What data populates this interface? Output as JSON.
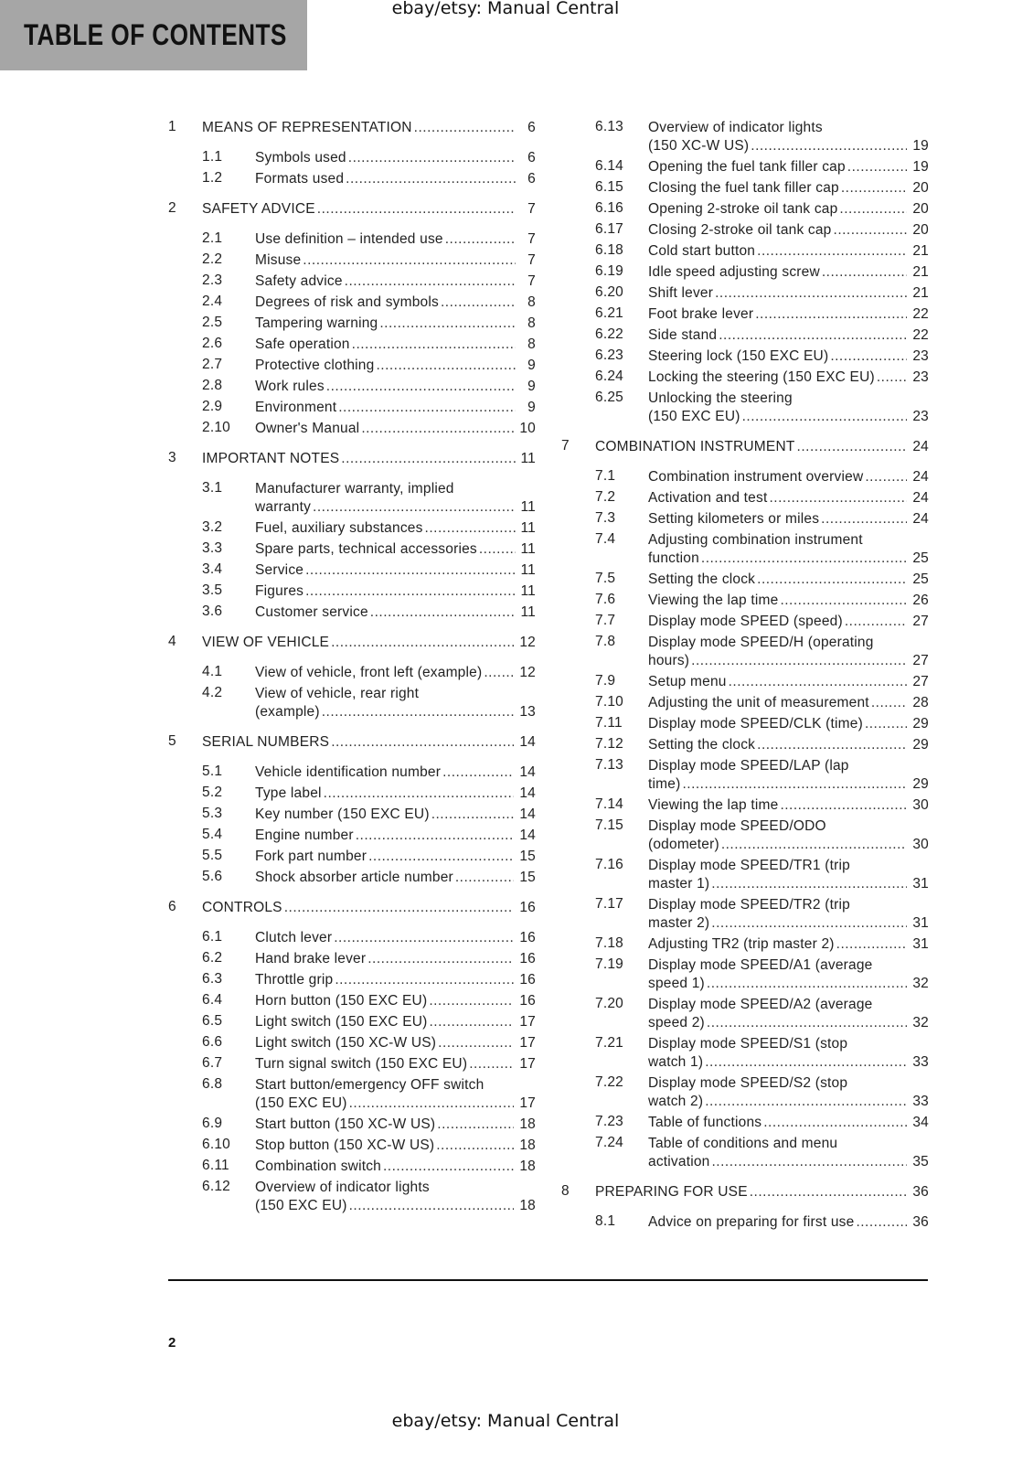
{
  "header": {
    "title": "TABLE OF CONTENTS"
  },
  "watermark_top": "ebay/etsy: Manual Central",
  "watermark_bottom": "ebay/etsy: Manual Central",
  "page_number": "2",
  "columns": [
    [
      {
        "level": 1,
        "num": "1",
        "lines": [
          "MEANS OF REPRESENTATION"
        ],
        "page": "6"
      },
      {
        "level": 2,
        "num": "1.1",
        "lines": [
          "Symbols used"
        ],
        "page": "6"
      },
      {
        "level": 2,
        "num": "1.2",
        "lines": [
          "Formats used"
        ],
        "page": "6"
      },
      {
        "level": 1,
        "num": "2",
        "lines": [
          "SAFETY ADVICE"
        ],
        "page": "7"
      },
      {
        "level": 2,
        "num": "2.1",
        "lines": [
          "Use definition – intended use"
        ],
        "page": "7"
      },
      {
        "level": 2,
        "num": "2.2",
        "lines": [
          "Misuse"
        ],
        "page": "7"
      },
      {
        "level": 2,
        "num": "2.3",
        "lines": [
          "Safety advice"
        ],
        "page": "7"
      },
      {
        "level": 2,
        "num": "2.4",
        "lines": [
          "Degrees of risk and symbols"
        ],
        "page": "8"
      },
      {
        "level": 2,
        "num": "2.5",
        "lines": [
          "Tampering warning"
        ],
        "page": "8"
      },
      {
        "level": 2,
        "num": "2.6",
        "lines": [
          "Safe operation"
        ],
        "page": "8"
      },
      {
        "level": 2,
        "num": "2.7",
        "lines": [
          "Protective clothing"
        ],
        "page": "9"
      },
      {
        "level": 2,
        "num": "2.8",
        "lines": [
          "Work rules"
        ],
        "page": "9"
      },
      {
        "level": 2,
        "num": "2.9",
        "lines": [
          "Environment"
        ],
        "page": "9"
      },
      {
        "level": 2,
        "num": "2.10",
        "lines": [
          "Owner's Manual"
        ],
        "page": "10"
      },
      {
        "level": 1,
        "num": "3",
        "lines": [
          "IMPORTANT NOTES"
        ],
        "page": "11"
      },
      {
        "level": 2,
        "num": "3.1",
        "lines": [
          "Manufacturer warranty, implied",
          "warranty"
        ],
        "page": "11"
      },
      {
        "level": 2,
        "num": "3.2",
        "lines": [
          "Fuel, auxiliary substances"
        ],
        "page": "11"
      },
      {
        "level": 2,
        "num": "3.3",
        "lines": [
          "Spare parts, technical accessories"
        ],
        "page": "11"
      },
      {
        "level": 2,
        "num": "3.4",
        "lines": [
          "Service"
        ],
        "page": "11"
      },
      {
        "level": 2,
        "num": "3.5",
        "lines": [
          "Figures"
        ],
        "page": "11"
      },
      {
        "level": 2,
        "num": "3.6",
        "lines": [
          "Customer service"
        ],
        "page": "11"
      },
      {
        "level": 1,
        "num": "4",
        "lines": [
          "VIEW OF VEHICLE"
        ],
        "page": "12"
      },
      {
        "level": 2,
        "num": "4.1",
        "lines": [
          "View of vehicle, front left (example)"
        ],
        "page": "12"
      },
      {
        "level": 2,
        "num": "4.2",
        "lines": [
          "View of vehicle, rear right",
          "(example)"
        ],
        "page": "13"
      },
      {
        "level": 1,
        "num": "5",
        "lines": [
          "SERIAL NUMBERS"
        ],
        "page": "14"
      },
      {
        "level": 2,
        "num": "5.1",
        "lines": [
          "Vehicle identification number"
        ],
        "page": "14"
      },
      {
        "level": 2,
        "num": "5.2",
        "lines": [
          "Type label"
        ],
        "page": "14"
      },
      {
        "level": 2,
        "num": "5.3",
        "lines": [
          "Key number (150 EXC EU)"
        ],
        "page": "14"
      },
      {
        "level": 2,
        "num": "5.4",
        "lines": [
          "Engine number"
        ],
        "page": "14"
      },
      {
        "level": 2,
        "num": "5.5",
        "lines": [
          "Fork part number"
        ],
        "page": "15"
      },
      {
        "level": 2,
        "num": "5.6",
        "lines": [
          "Shock absorber article number"
        ],
        "page": "15"
      },
      {
        "level": 1,
        "num": "6",
        "lines": [
          "CONTROLS"
        ],
        "page": "16"
      },
      {
        "level": 2,
        "num": "6.1",
        "lines": [
          "Clutch lever"
        ],
        "page": "16"
      },
      {
        "level": 2,
        "num": "6.2",
        "lines": [
          "Hand brake lever"
        ],
        "page": "16"
      },
      {
        "level": 2,
        "num": "6.3",
        "lines": [
          "Throttle grip"
        ],
        "page": "16"
      },
      {
        "level": 2,
        "num": "6.4",
        "lines": [
          "Horn button (150 EXC EU)"
        ],
        "page": "16"
      },
      {
        "level": 2,
        "num": "6.5",
        "lines": [
          "Light switch (150 EXC EU)"
        ],
        "page": "17"
      },
      {
        "level": 2,
        "num": "6.6",
        "lines": [
          "Light switch (150 XC-W US)"
        ],
        "page": "17"
      },
      {
        "level": 2,
        "num": "6.7",
        "lines": [
          "Turn signal switch (150 EXC EU)"
        ],
        "page": "17"
      },
      {
        "level": 2,
        "num": "6.8",
        "lines": [
          "Start button/emergency OFF switch",
          "(150 EXC EU)"
        ],
        "page": "17"
      },
      {
        "level": 2,
        "num": "6.9",
        "lines": [
          "Start button (150 XC-W US)"
        ],
        "page": "18"
      },
      {
        "level": 2,
        "num": "6.10",
        "lines": [
          "Stop button (150 XC-W US)"
        ],
        "page": "18"
      },
      {
        "level": 2,
        "num": "6.11",
        "lines": [
          "Combination switch"
        ],
        "page": "18"
      },
      {
        "level": 2,
        "num": "6.12",
        "lines": [
          "Overview of indicator lights",
          "(150 EXC EU)"
        ],
        "page": "18"
      }
    ],
    [
      {
        "level": 2,
        "num": "6.13",
        "lines": [
          "Overview of indicator lights",
          "(150 XC-W US)"
        ],
        "page": "19"
      },
      {
        "level": 2,
        "num": "6.14",
        "lines": [
          "Opening the fuel tank filler cap"
        ],
        "page": "19"
      },
      {
        "level": 2,
        "num": "6.15",
        "lines": [
          "Closing the fuel tank filler cap"
        ],
        "page": "20"
      },
      {
        "level": 2,
        "num": "6.16",
        "lines": [
          "Opening 2-stroke oil tank cap"
        ],
        "page": "20"
      },
      {
        "level": 2,
        "num": "6.17",
        "lines": [
          "Closing 2-stroke oil tank cap"
        ],
        "page": "20"
      },
      {
        "level": 2,
        "num": "6.18",
        "lines": [
          "Cold start button"
        ],
        "page": "21"
      },
      {
        "level": 2,
        "num": "6.19",
        "lines": [
          "Idle speed adjusting screw"
        ],
        "page": "21"
      },
      {
        "level": 2,
        "num": "6.20",
        "lines": [
          "Shift lever"
        ],
        "page": "21"
      },
      {
        "level": 2,
        "num": "6.21",
        "lines": [
          "Foot brake lever"
        ],
        "page": "22"
      },
      {
        "level": 2,
        "num": "6.22",
        "lines": [
          "Side stand"
        ],
        "page": "22"
      },
      {
        "level": 2,
        "num": "6.23",
        "lines": [
          "Steering lock (150 EXC EU)"
        ],
        "page": "23"
      },
      {
        "level": 2,
        "num": "6.24",
        "lines": [
          "Locking the steering (150 EXC EU)"
        ],
        "page": "23"
      },
      {
        "level": 2,
        "num": "6.25",
        "lines": [
          "Unlocking the steering",
          "(150 EXC EU)"
        ],
        "page": "23"
      },
      {
        "level": 1,
        "num": "7",
        "lines": [
          "COMBINATION INSTRUMENT"
        ],
        "page": "24"
      },
      {
        "level": 2,
        "num": "7.1",
        "lines": [
          "Combination instrument overview"
        ],
        "page": "24"
      },
      {
        "level": 2,
        "num": "7.2",
        "lines": [
          "Activation and test"
        ],
        "page": "24"
      },
      {
        "level": 2,
        "num": "7.3",
        "lines": [
          "Setting kilometers or miles"
        ],
        "page": "24"
      },
      {
        "level": 2,
        "num": "7.4",
        "lines": [
          "Adjusting combination instrument",
          "function"
        ],
        "page": "25"
      },
      {
        "level": 2,
        "num": "7.5",
        "lines": [
          "Setting the clock"
        ],
        "page": "25"
      },
      {
        "level": 2,
        "num": "7.6",
        "lines": [
          "Viewing the lap time"
        ],
        "page": "26"
      },
      {
        "level": 2,
        "num": "7.7",
        "lines": [
          "Display mode SPEED (speed)"
        ],
        "page": "27"
      },
      {
        "level": 2,
        "num": "7.8",
        "lines": [
          "Display mode SPEED/H (operating",
          "hours)"
        ],
        "page": "27"
      },
      {
        "level": 2,
        "num": "7.9",
        "lines": [
          "Setup menu"
        ],
        "page": "27"
      },
      {
        "level": 2,
        "num": "7.10",
        "lines": [
          "Adjusting the unit of measurement"
        ],
        "page": "28"
      },
      {
        "level": 2,
        "num": "7.11",
        "lines": [
          "Display mode SPEED/CLK (time)"
        ],
        "page": "29"
      },
      {
        "level": 2,
        "num": "7.12",
        "lines": [
          "Setting the clock"
        ],
        "page": "29"
      },
      {
        "level": 2,
        "num": "7.13",
        "lines": [
          "Display mode SPEED/LAP (lap",
          "time)"
        ],
        "page": "29"
      },
      {
        "level": 2,
        "num": "7.14",
        "lines": [
          "Viewing the lap time"
        ],
        "page": "30"
      },
      {
        "level": 2,
        "num": "7.15",
        "lines": [
          "Display mode SPEED/ODO",
          "(odometer)"
        ],
        "page": "30"
      },
      {
        "level": 2,
        "num": "7.16",
        "lines": [
          "Display mode SPEED/TR1 (trip",
          "master 1)"
        ],
        "page": "31"
      },
      {
        "level": 2,
        "num": "7.17",
        "lines": [
          "Display mode SPEED/TR2 (trip",
          "master 2)"
        ],
        "page": "31"
      },
      {
        "level": 2,
        "num": "7.18",
        "lines": [
          "Adjusting TR2 (trip master 2)"
        ],
        "page": "31"
      },
      {
        "level": 2,
        "num": "7.19",
        "lines": [
          "Display mode SPEED/A1 (average",
          "speed 1)"
        ],
        "page": "32"
      },
      {
        "level": 2,
        "num": "7.20",
        "lines": [
          "Display mode SPEED/A2 (average",
          "speed 2)"
        ],
        "page": "32"
      },
      {
        "level": 2,
        "num": "7.21",
        "lines": [
          "Display mode SPEED/S1 (stop",
          "watch 1)"
        ],
        "page": "33"
      },
      {
        "level": 2,
        "num": "7.22",
        "lines": [
          "Display mode SPEED/S2 (stop",
          "watch 2)"
        ],
        "page": "33"
      },
      {
        "level": 2,
        "num": "7.23",
        "lines": [
          "Table of functions"
        ],
        "page": "34"
      },
      {
        "level": 2,
        "num": "7.24",
        "lines": [
          "Table of conditions and menu",
          "activation"
        ],
        "page": "35"
      },
      {
        "level": 1,
        "num": "8",
        "lines": [
          "PREPARING FOR USE"
        ],
        "page": "36"
      },
      {
        "level": 2,
        "num": "8.1",
        "lines": [
          "Advice on preparing for first use"
        ],
        "page": "36"
      }
    ]
  ]
}
